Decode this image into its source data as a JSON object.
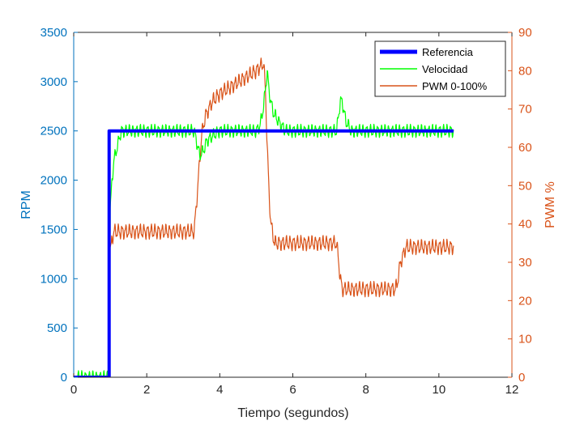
{
  "chart_data": {
    "type": "line",
    "title": "",
    "xlabel": "Tiempo (segundos)",
    "ylabel_left": "RPM",
    "ylabel_right": "PWM %",
    "xlim": [
      0,
      12
    ],
    "ylim_left": [
      0,
      3500
    ],
    "ylim_right": [
      0,
      90
    ],
    "x_ticks": [
      "0",
      "2",
      "4",
      "6",
      "8",
      "10",
      "12"
    ],
    "y_ticks_left": [
      "0",
      "500",
      "1000",
      "1500",
      "2000",
      "2500",
      "3000",
      "3500"
    ],
    "y_ticks_right": [
      "0",
      "10",
      "20",
      "30",
      "40",
      "50",
      "60",
      "70",
      "80",
      "90"
    ],
    "grid": false,
    "legend_position": "top-right",
    "colors": {
      "left_axis": "#0072BD",
      "right_axis": "#D95319",
      "frame": "#262626",
      "referencia": "#0000FF",
      "velocidad": "#00FF00",
      "pwm": "#D95319"
    },
    "series": [
      {
        "name": "Referencia",
        "axis": "left",
        "x": [
          0,
          0.97,
          0.97,
          10.4
        ],
        "y": [
          0,
          0,
          2500,
          2500
        ]
      },
      {
        "name": "Velocidad",
        "axis": "left",
        "x": [
          0,
          0.98,
          1.0,
          1.05,
          1.1,
          1.2,
          1.3,
          3.3,
          3.45,
          3.55,
          3.65,
          3.8,
          4.0,
          5.0,
          5.1,
          5.2,
          5.3,
          5.35,
          5.45,
          5.6,
          5.8,
          7.2,
          7.3,
          7.35,
          7.45,
          7.6,
          8.0,
          10.4
        ],
        "y": [
          0,
          0,
          1700,
          2000,
          2200,
          2350,
          2500,
          2500,
          2250,
          2300,
          2400,
          2450,
          2500,
          2500,
          2550,
          2750,
          3100,
          2900,
          2700,
          2600,
          2500,
          2500,
          2800,
          2800,
          2600,
          2500,
          2500,
          2500
        ],
        "oscillation": 50
      },
      {
        "name": "PWM 0-100%",
        "axis": "right",
        "x": [
          0.98,
          1.0,
          1.1,
          1.5,
          3.3,
          3.4,
          3.5,
          3.6,
          3.7,
          3.8,
          4.0,
          4.5,
          5.0,
          5.2,
          5.25,
          5.3,
          5.35,
          5.4,
          5.5,
          7.2,
          7.3,
          7.35,
          8.8,
          8.85,
          8.95,
          9.1,
          10.4
        ],
        "y": [
          33,
          34,
          38,
          38,
          38,
          50,
          63,
          68,
          70,
          72,
          74,
          77,
          80,
          82,
          75,
          60,
          48,
          40,
          35,
          35,
          26,
          23,
          23,
          24,
          30,
          34,
          34
        ],
        "oscillation": 1.5
      }
    ]
  }
}
